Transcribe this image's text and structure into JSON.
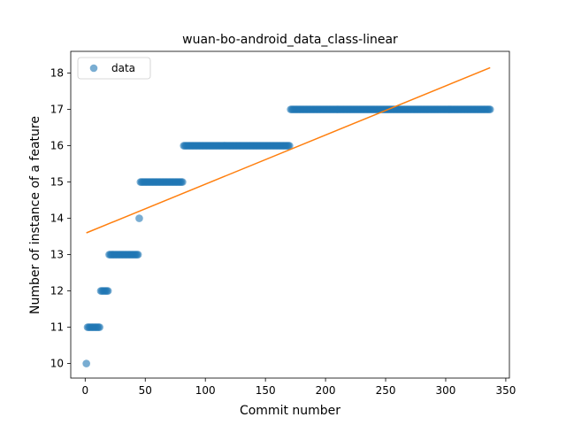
{
  "chart_data": {
    "type": "scatter",
    "title": "wuan-bo-android_data_class-linear",
    "xlabel": "Commit number",
    "ylabel": "Number of instance of a feature",
    "xlim": [
      -12.0,
      353.0
    ],
    "ylim": [
      9.6,
      18.6
    ],
    "x_ticks": [
      0,
      50,
      100,
      150,
      200,
      250,
      300,
      350
    ],
    "y_ticks": [
      10,
      11,
      12,
      13,
      14,
      15,
      16,
      17,
      18
    ],
    "legend": {
      "position": "top-left",
      "entries": [
        "data"
      ]
    },
    "grid": false,
    "colors": {
      "points": "#1f77b4",
      "fit_line": "#ff7f0e"
    },
    "series": [
      {
        "name": "data",
        "kind": "scatter",
        "segments": [
          {
            "y": 10,
            "x_start": 1,
            "x_end": 1,
            "step": 1
          },
          {
            "y": 11,
            "x_start": 2,
            "x_end": 12,
            "step": 1
          },
          {
            "y": 12,
            "x_start": 13,
            "x_end": 19,
            "step": 1
          },
          {
            "y": 13,
            "x_start": 20,
            "x_end": 44,
            "step": 1
          },
          {
            "y": 14,
            "x_start": 45,
            "x_end": 45,
            "step": 1
          },
          {
            "y": 15,
            "x_start": 46,
            "x_end": 81,
            "step": 1
          },
          {
            "y": 16,
            "x_start": 82,
            "x_end": 170,
            "step": 1
          },
          {
            "y": 17,
            "x_start": 171,
            "x_end": 337,
            "step": 1
          }
        ]
      },
      {
        "kind": "line",
        "x": [
          1,
          337
        ],
        "y": [
          13.6,
          18.15
        ]
      }
    ]
  }
}
